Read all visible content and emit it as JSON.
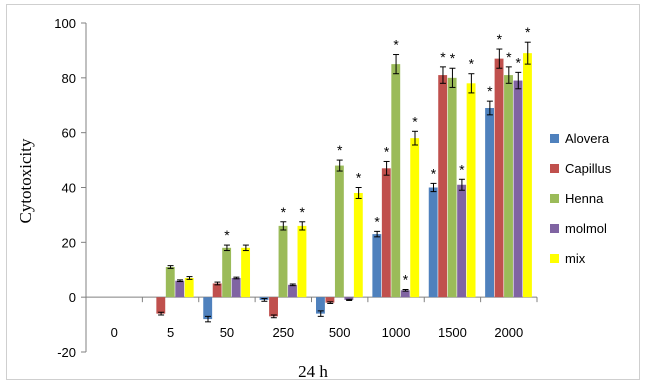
{
  "chart_data": {
    "type": "bar",
    "title": "",
    "xlabel": "24 h",
    "ylabel": "Cytotoxicity",
    "ylim": [
      -20,
      100
    ],
    "yticks": [
      -20,
      0,
      20,
      40,
      60,
      80,
      100
    ],
    "categories": [
      "0",
      "5",
      "50",
      "250",
      "500",
      "1000",
      "1500",
      "2000"
    ],
    "grid": false,
    "legend_position": "right",
    "series": [
      {
        "name": "Alovera",
        "color": "#4f81bd",
        "values": [
          0,
          0,
          -8,
          -1,
          -6,
          23,
          40,
          69
        ],
        "errors": [
          0,
          0,
          1,
          0.5,
          1,
          1,
          1.5,
          2.5
        ],
        "significant": [
          false,
          false,
          false,
          false,
          false,
          true,
          true,
          true
        ]
      },
      {
        "name": "Capillus",
        "color": "#c0504d",
        "values": [
          0,
          -6,
          5,
          -7,
          -2,
          47,
          81,
          87
        ],
        "errors": [
          0,
          0.5,
          0.5,
          0.5,
          0.3,
          2.5,
          3,
          3.5
        ],
        "significant": [
          false,
          false,
          false,
          false,
          false,
          true,
          true,
          true
        ]
      },
      {
        "name": "Henna",
        "color": "#9bbb59",
        "values": [
          0,
          11,
          18,
          26,
          48,
          85,
          80,
          81
        ],
        "errors": [
          0,
          0.5,
          1,
          1.5,
          2,
          3.5,
          3.5,
          3
        ],
        "significant": [
          false,
          false,
          true,
          true,
          true,
          true,
          true,
          true
        ]
      },
      {
        "name": "molmol",
        "color": "#8064a2",
        "values": [
          0,
          6,
          7,
          4.5,
          -1,
          2.5,
          41,
          79
        ],
        "errors": [
          0,
          0.3,
          0.3,
          0.3,
          0.2,
          0.3,
          2,
          3
        ],
        "significant": [
          false,
          false,
          false,
          false,
          false,
          true,
          true,
          true
        ]
      },
      {
        "name": "mix",
        "color": "#ffff00",
        "values": [
          0,
          7,
          18,
          26,
          38,
          58,
          78,
          89
        ],
        "errors": [
          0,
          0.5,
          1,
          1.5,
          2,
          2.5,
          3.5,
          4
        ],
        "significant": [
          false,
          false,
          false,
          true,
          true,
          true,
          true,
          true
        ]
      }
    ],
    "annotation_symbol": "*"
  }
}
